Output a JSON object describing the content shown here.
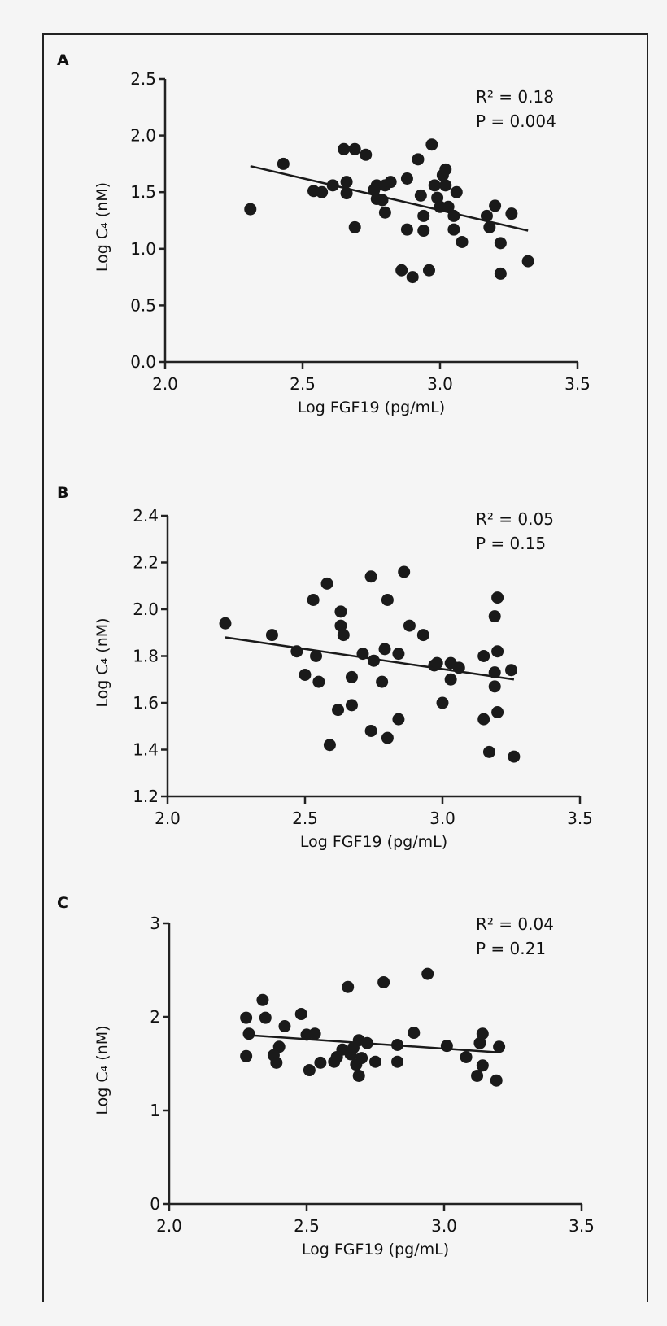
{
  "chart_data": [
    {
      "type": "scatter",
      "panel_label": "A",
      "xlabel": "Log FGF19 (pg/mL)",
      "ylabel": "Log C₄ (nM)",
      "xlim": [
        2.0,
        3.5
      ],
      "ylim": [
        0.0,
        2.5
      ],
      "xticks": [
        2.0,
        2.5,
        3.0,
        3.5
      ],
      "xtick_labels": [
        "2.0",
        "2.5",
        "3.0",
        "3.5"
      ],
      "yticks": [
        0.0,
        0.5,
        1.0,
        1.5,
        2.0,
        2.5
      ],
      "ytick_labels": [
        "0.0",
        "0.5",
        "1.0",
        "1.5",
        "2.0",
        "2.5"
      ],
      "annotations": [
        "R² = 0.18",
        "P = 0.004"
      ],
      "grid": false,
      "point_color": "#1a1a1a",
      "regression_line": [
        [
          2.31,
          1.73
        ],
        [
          3.32,
          1.16
        ]
      ],
      "points": [
        [
          2.31,
          1.35
        ],
        [
          2.43,
          1.75
        ],
        [
          2.54,
          1.51
        ],
        [
          2.57,
          1.5
        ],
        [
          2.61,
          1.56
        ],
        [
          2.65,
          1.88
        ],
        [
          2.69,
          1.88
        ],
        [
          2.73,
          1.83
        ],
        [
          2.66,
          1.59
        ],
        [
          2.66,
          1.49
        ],
        [
          2.69,
          1.19
        ],
        [
          2.77,
          1.56
        ],
        [
          2.76,
          1.52
        ],
        [
          2.77,
          1.44
        ],
        [
          2.79,
          1.43
        ],
        [
          2.8,
          1.32
        ],
        [
          2.8,
          1.56
        ],
        [
          2.82,
          1.59
        ],
        [
          2.88,
          1.62
        ],
        [
          2.86,
          0.81
        ],
        [
          2.9,
          0.75
        ],
        [
          2.88,
          1.17
        ],
        [
          2.92,
          1.79
        ],
        [
          2.93,
          1.47
        ],
        [
          2.94,
          1.29
        ],
        [
          2.94,
          1.16
        ],
        [
          2.96,
          0.81
        ],
        [
          2.97,
          1.92
        ],
        [
          2.98,
          1.56
        ],
        [
          2.99,
          1.45
        ],
        [
          3.0,
          1.37
        ],
        [
          3.01,
          1.65
        ],
        [
          3.02,
          1.7
        ],
        [
          3.02,
          1.56
        ],
        [
          3.03,
          1.37
        ],
        [
          3.05,
          1.29
        ],
        [
          3.05,
          1.17
        ],
        [
          3.06,
          1.5
        ],
        [
          3.08,
          1.06
        ],
        [
          3.17,
          1.29
        ],
        [
          3.18,
          1.19
        ],
        [
          3.2,
          1.38
        ],
        [
          3.22,
          1.05
        ],
        [
          3.22,
          0.78
        ],
        [
          3.26,
          1.31
        ],
        [
          3.32,
          0.89
        ]
      ]
    },
    {
      "type": "scatter",
      "panel_label": "B",
      "xlabel": "Log FGF19 (pg/mL)",
      "ylabel": "Log C₄ (nM)",
      "xlim": [
        2.0,
        3.5
      ],
      "ylim": [
        1.2,
        2.4
      ],
      "xticks": [
        2.0,
        2.5,
        3.0,
        3.5
      ],
      "xtick_labels": [
        "2.0",
        "2.5",
        "3.0",
        "3.5"
      ],
      "yticks": [
        1.2,
        1.4,
        1.6,
        1.8,
        2.0,
        2.2,
        2.4
      ],
      "ytick_labels": [
        "1.2",
        "1.4",
        "1.6",
        "1.8",
        "2.0",
        "2.2",
        "2.4"
      ],
      "annotations": [
        "R² = 0.05",
        "P = 0.15"
      ],
      "grid": false,
      "point_color": "#1a1a1a",
      "regression_line": [
        [
          2.21,
          1.88
        ],
        [
          3.26,
          1.7
        ]
      ],
      "points": [
        [
          2.21,
          1.94
        ],
        [
          2.38,
          1.89
        ],
        [
          2.47,
          1.82
        ],
        [
          2.54,
          1.8
        ],
        [
          2.5,
          1.72
        ],
        [
          2.55,
          1.69
        ],
        [
          2.53,
          2.04
        ],
        [
          2.58,
          2.11
        ],
        [
          2.59,
          1.42
        ],
        [
          2.62,
          1.57
        ],
        [
          2.63,
          1.93
        ],
        [
          2.63,
          1.99
        ],
        [
          2.64,
          1.89
        ],
        [
          2.67,
          1.59
        ],
        [
          2.67,
          1.71
        ],
        [
          2.71,
          1.81
        ],
        [
          2.74,
          1.48
        ],
        [
          2.74,
          2.14
        ],
        [
          2.75,
          1.78
        ],
        [
          2.78,
          1.69
        ],
        [
          2.79,
          1.83
        ],
        [
          2.8,
          2.04
        ],
        [
          2.8,
          1.45
        ],
        [
          2.84,
          1.81
        ],
        [
          2.84,
          1.53
        ],
        [
          2.86,
          2.16
        ],
        [
          2.88,
          1.93
        ],
        [
          2.93,
          1.89
        ],
        [
          2.97,
          1.76
        ],
        [
          2.98,
          1.77
        ],
        [
          3.0,
          1.6
        ],
        [
          3.03,
          1.7
        ],
        [
          3.03,
          1.77
        ],
        [
          3.06,
          1.75
        ],
        [
          3.15,
          1.53
        ],
        [
          3.15,
          1.8
        ],
        [
          3.17,
          1.39
        ],
        [
          3.19,
          1.97
        ],
        [
          3.19,
          1.73
        ],
        [
          3.19,
          1.67
        ],
        [
          3.2,
          1.56
        ],
        [
          3.2,
          2.05
        ],
        [
          3.2,
          1.82
        ],
        [
          3.25,
          1.74
        ],
        [
          3.26,
          1.37
        ]
      ]
    },
    {
      "type": "scatter",
      "panel_label": "C",
      "xlabel": "Log FGF19 (pg/mL)",
      "ylabel": "Log C₄ (nM)",
      "xlim": [
        2.0,
        3.5
      ],
      "ylim": [
        0,
        3
      ],
      "xticks": [
        2.0,
        2.5,
        3.0,
        3.5
      ],
      "xtick_labels": [
        "2.0",
        "2.5",
        "3.0",
        "3.5"
      ],
      "yticks": [
        0,
        1,
        2,
        3
      ],
      "ytick_labels": [
        "0",
        "1",
        "2",
        "3"
      ],
      "annotations": [
        "R² = 0.04",
        "P = 0.21"
      ],
      "grid": false,
      "point_color": "#1a1a1a",
      "regression_line": [
        [
          2.31,
          1.8
        ],
        [
          3.2,
          1.62
        ]
      ],
      "points": [
        [
          2.28,
          1.99
        ],
        [
          2.29,
          1.82
        ],
        [
          2.28,
          1.58
        ],
        [
          2.34,
          2.18
        ],
        [
          2.35,
          1.99
        ],
        [
          2.4,
          1.68
        ],
        [
          2.38,
          1.59
        ],
        [
          2.39,
          1.51
        ],
        [
          2.42,
          1.9
        ],
        [
          2.48,
          2.03
        ],
        [
          2.5,
          1.81
        ],
        [
          2.53,
          1.82
        ],
        [
          2.51,
          1.43
        ],
        [
          2.55,
          1.51
        ],
        [
          2.6,
          1.52
        ],
        [
          2.61,
          1.57
        ],
        [
          2.63,
          1.65
        ],
        [
          2.65,
          2.32
        ],
        [
          2.66,
          1.6
        ],
        [
          2.67,
          1.67
        ],
        [
          2.69,
          1.75
        ],
        [
          2.68,
          1.49
        ],
        [
          2.7,
          1.56
        ],
        [
          2.72,
          1.72
        ],
        [
          2.69,
          1.37
        ],
        [
          2.75,
          1.52
        ],
        [
          2.78,
          2.37
        ],
        [
          2.83,
          1.7
        ],
        [
          2.83,
          1.52
        ],
        [
          2.89,
          1.83
        ],
        [
          2.94,
          2.46
        ],
        [
          3.01,
          1.69
        ],
        [
          3.08,
          1.57
        ],
        [
          3.13,
          1.72
        ],
        [
          3.14,
          1.82
        ],
        [
          3.14,
          1.48
        ],
        [
          3.12,
          1.37
        ],
        [
          3.19,
          1.32
        ],
        [
          3.2,
          1.68
        ]
      ]
    }
  ]
}
